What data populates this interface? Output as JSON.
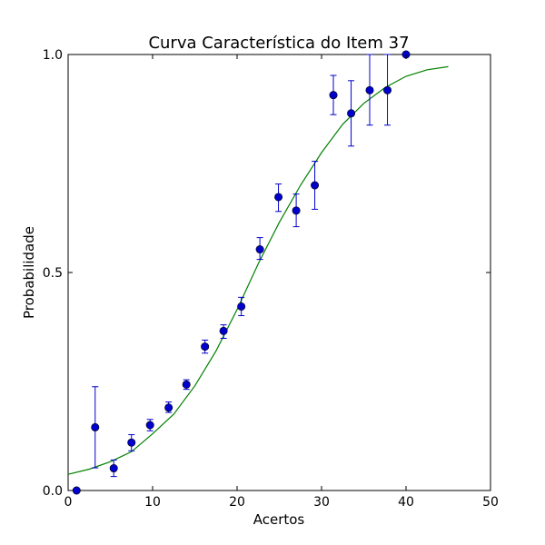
{
  "chart_data": {
    "type": "scatter",
    "title": "Curva Característica do Item 37",
    "xlabel": "Acertos",
    "ylabel": "Probabilidade",
    "xlim": [
      0,
      50
    ],
    "ylim": [
      0,
      1
    ],
    "x_ticks": [
      {
        "value": 0,
        "label": "0"
      },
      {
        "value": 10,
        "label": "10"
      },
      {
        "value": 20,
        "label": "20"
      },
      {
        "value": 30,
        "label": "30"
      },
      {
        "value": 40,
        "label": "40"
      },
      {
        "value": 50,
        "label": "50"
      }
    ],
    "y_ticks": [
      {
        "value": 0,
        "label": "0.0"
      },
      {
        "value": 0.5,
        "label": "0.5"
      },
      {
        "value": 1,
        "label": "1.0"
      }
    ],
    "grid": false,
    "points": {
      "color": "#0000cc",
      "data": [
        {
          "x": 1.0,
          "y": 0.0,
          "lo": 0.0,
          "hi": 0.0
        },
        {
          "x": 3.2,
          "y": 0.145,
          "lo": 0.052,
          "hi": 0.238
        },
        {
          "x": 5.4,
          "y": 0.051,
          "lo": 0.032,
          "hi": 0.07
        },
        {
          "x": 7.5,
          "y": 0.11,
          "lo": 0.091,
          "hi": 0.128
        },
        {
          "x": 9.7,
          "y": 0.15,
          "lo": 0.137,
          "hi": 0.163
        },
        {
          "x": 11.9,
          "y": 0.19,
          "lo": 0.179,
          "hi": 0.203
        },
        {
          "x": 14.0,
          "y": 0.243,
          "lo": 0.232,
          "hi": 0.254
        },
        {
          "x": 16.2,
          "y": 0.33,
          "lo": 0.315,
          "hi": 0.345
        },
        {
          "x": 18.4,
          "y": 0.366,
          "lo": 0.349,
          "hi": 0.38
        },
        {
          "x": 20.5,
          "y": 0.422,
          "lo": 0.401,
          "hi": 0.443
        },
        {
          "x": 22.7,
          "y": 0.553,
          "lo": 0.53,
          "hi": 0.58
        },
        {
          "x": 24.9,
          "y": 0.673,
          "lo": 0.64,
          "hi": 0.703
        },
        {
          "x": 27.0,
          "y": 0.642,
          "lo": 0.605,
          "hi": 0.68
        },
        {
          "x": 29.2,
          "y": 0.7,
          "lo": 0.645,
          "hi": 0.755
        },
        {
          "x": 31.4,
          "y": 0.907,
          "lo": 0.862,
          "hi": 0.952
        },
        {
          "x": 33.5,
          "y": 0.865,
          "lo": 0.79,
          "hi": 0.94
        },
        {
          "x": 35.7,
          "y": 0.918,
          "lo": 0.838,
          "hi": 1.0
        },
        {
          "x": 37.8,
          "y": 0.918,
          "lo": 0.838,
          "hi": 1.0
        },
        {
          "x": 40.0,
          "y": 1.0,
          "lo": 1.0,
          "hi": 1.0
        }
      ]
    },
    "curve": {
      "color": "#008000",
      "data": [
        {
          "x": 0,
          "y": 0.037
        },
        {
          "x": 2.5,
          "y": 0.049
        },
        {
          "x": 5,
          "y": 0.066
        },
        {
          "x": 7.5,
          "y": 0.089
        },
        {
          "x": 10,
          "y": 0.13
        },
        {
          "x": 12.5,
          "y": 0.175
        },
        {
          "x": 15,
          "y": 0.24
        },
        {
          "x": 17.5,
          "y": 0.32
        },
        {
          "x": 20,
          "y": 0.415
        },
        {
          "x": 22.5,
          "y": 0.52
        },
        {
          "x": 25,
          "y": 0.615
        },
        {
          "x": 27.5,
          "y": 0.7
        },
        {
          "x": 30,
          "y": 0.775
        },
        {
          "x": 32.5,
          "y": 0.84
        },
        {
          "x": 35,
          "y": 0.888
        },
        {
          "x": 37.5,
          "y": 0.924
        },
        {
          "x": 40,
          "y": 0.95
        },
        {
          "x": 42.5,
          "y": 0.965
        },
        {
          "x": 45,
          "y": 0.972
        }
      ]
    }
  }
}
